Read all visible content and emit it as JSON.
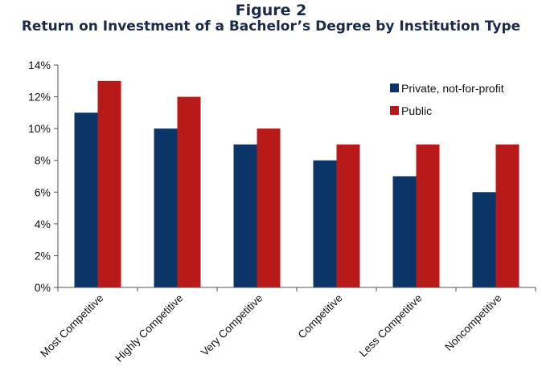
{
  "figure_label": "Figure 2",
  "chart_data": {
    "type": "bar",
    "title": "Return on Investment of a Bachelor’s Degree by Institution Type",
    "xlabel": "",
    "ylabel": "",
    "categories": [
      "Most Competitive",
      "Highly Competitive",
      "Very Competitive",
      "Competitive",
      "Less Competitive",
      "Noncompetitive"
    ],
    "series": [
      {
        "name": "Private, not-for-profit",
        "color": "#0a3566",
        "values": [
          11,
          10,
          9,
          8,
          7,
          6
        ]
      },
      {
        "name": "Public",
        "color": "#b81a1a",
        "values": [
          13,
          12,
          10,
          9,
          9,
          9
        ]
      }
    ],
    "ylim": [
      0,
      14
    ],
    "yticks": [
      "0%",
      "2%",
      "4%",
      "6%",
      "8%",
      "10%",
      "12%",
      "14%"
    ],
    "grid": false,
    "legend_position": "top-right"
  }
}
